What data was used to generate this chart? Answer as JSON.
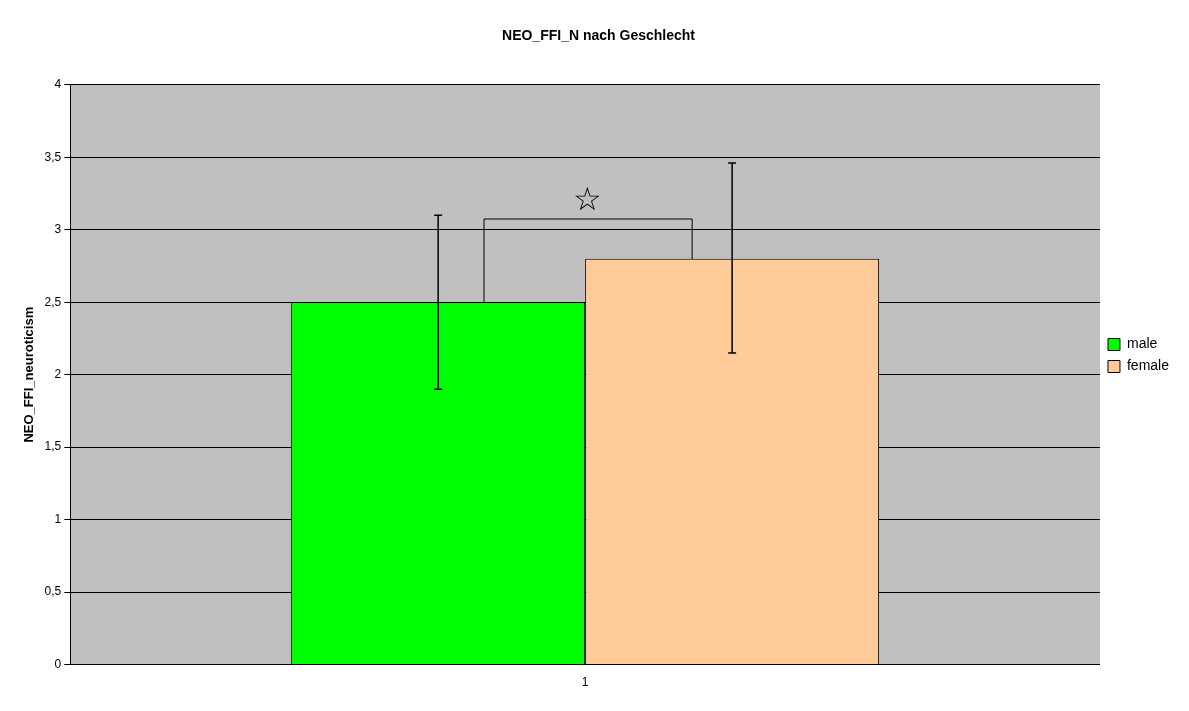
{
  "chart_data": {
    "type": "bar",
    "title": "NEO_FFI_N nach Geschlecht",
    "ylabel": "NEO_FFI_neuroticism",
    "categories": [
      "1"
    ],
    "series": [
      {
        "name": "male",
        "color": "#00ff00",
        "values": [
          2.5
        ],
        "errors": [
          [
            1.9,
            3.1
          ]
        ]
      },
      {
        "name": "female",
        "color": "#ffcc99",
        "values": [
          2.8
        ],
        "errors": [
          [
            2.15,
            3.46
          ]
        ]
      }
    ],
    "ylim": [
      0,
      4
    ],
    "yticks": [
      0,
      {
        "value": 0.5,
        "label": "0,5"
      },
      1,
      {
        "value": 1.5,
        "label": "1,5"
      },
      2,
      {
        "value": 2.5,
        "label": "2,5"
      },
      3,
      {
        "value": 3.5,
        "label": "3,5"
      },
      4
    ],
    "grid": "y",
    "legend": "right",
    "annotations": [
      "☆"
    ]
  }
}
